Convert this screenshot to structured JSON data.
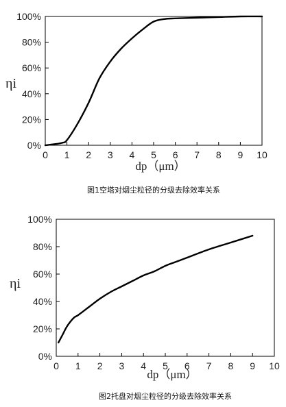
{
  "chart_data": [
    {
      "type": "line",
      "title": "图1空塔对烟尘粒径的分级去除效率关系",
      "xlabel": "dp（μm）",
      "ylabel": "ηi",
      "xlim": [
        0,
        10
      ],
      "ylim": [
        0,
        100
      ],
      "x_ticks": [
        "0",
        "1",
        "2",
        "3",
        "4",
        "5",
        "6",
        "7",
        "8",
        "9",
        "10"
      ],
      "y_ticks": [
        "0%",
        "20%",
        "40%",
        "60%",
        "80%",
        "100%"
      ],
      "grid": false,
      "series": [
        {
          "x": [
            0,
            0.5,
            0.8,
            1.0,
            1.5,
            2.0,
            2.5,
            3.0,
            3.5,
            4.0,
            4.5,
            5.0,
            5.5,
            6.0,
            7.0,
            8.0,
            9.0,
            10.0
          ],
          "values": [
            0,
            1,
            2,
            4,
            17,
            33,
            52,
            65,
            75,
            83,
            90,
            96,
            98,
            98.5,
            99,
            99.5,
            100,
            100
          ]
        }
      ]
    },
    {
      "type": "line",
      "title": "图2托盘对烟尘粒径的分级去除效率关系",
      "xlabel": "dp（μm）",
      "ylabel": "ηi",
      "xlim": [
        0,
        10
      ],
      "ylim": [
        0,
        100
      ],
      "x_ticks": [
        "0",
        "1",
        "2",
        "3",
        "4",
        "5",
        "6",
        "7",
        "8",
        "9",
        "10"
      ],
      "y_ticks": [
        "0%",
        "20%",
        "40%",
        "60%",
        "80%",
        "100%"
      ],
      "grid": false,
      "series": [
        {
          "x": [
            0.1,
            0.3,
            0.5,
            0.8,
            1.0,
            1.5,
            2.0,
            2.5,
            3.0,
            3.5,
            4.0,
            4.5,
            5.0,
            5.5,
            6.0,
            7.0,
            8.0,
            9.0
          ],
          "values": [
            10,
            16,
            22,
            28,
            30,
            36,
            42,
            47,
            51,
            55,
            59,
            62,
            66,
            69,
            72,
            78,
            83,
            88
          ]
        }
      ]
    }
  ]
}
